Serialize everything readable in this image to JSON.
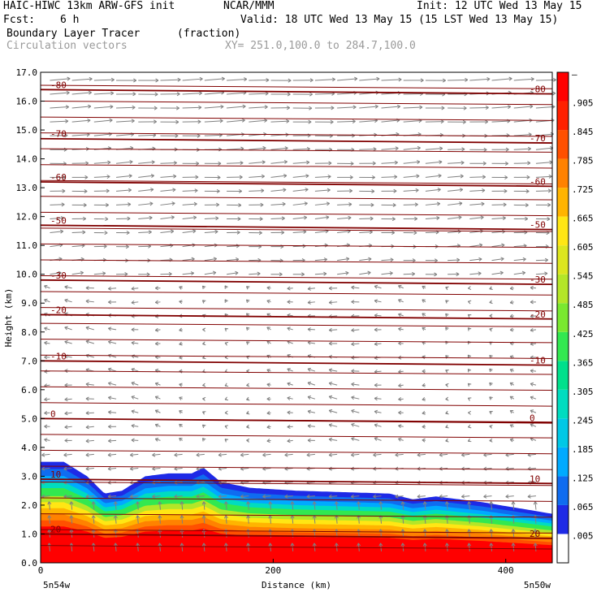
{
  "header": {
    "model": "HAIC-HIWC 13km ARW-GFS init",
    "org": "NCAR/MMM",
    "init": "Init: 12 UTC Wed 13 May 15",
    "fcst_label": "Fcst:",
    "fcst_value": "6 h",
    "valid": "Valid: 18 UTC Wed 13 May 15 (15 LST Wed 13 May 15)",
    "field": "Boundary Layer Tracer",
    "units": "(fraction)",
    "vectors": "Circulation vectors",
    "xy": "XY= 251.0,100.0 to 284.7,100.0"
  },
  "axes": {
    "ylabel": "Height (km)",
    "xlabel": "Distance (km)",
    "left_end": "5n54w",
    "right_end": "5n50w"
  },
  "colors": {
    "contour": "#800000",
    "vector": "#808080"
  },
  "chart_data": {
    "type": "heatmap",
    "xlim": [
      0,
      440
    ],
    "ylim": [
      0,
      17
    ],
    "xticks": [
      "0",
      "200",
      "400"
    ],
    "xtick_values": [
      0,
      200,
      400
    ],
    "yticks": [
      "0.0",
      "1.0",
      "2.0",
      "3.0",
      "4.0",
      "5.0",
      "6.0",
      "7.0",
      "8.0",
      "9.0",
      "10.0",
      "11.0",
      "12.0",
      "13.0",
      "14.0",
      "15.0",
      "16.0",
      "17.0"
    ],
    "ytick_values": [
      0,
      1,
      2,
      3,
      4,
      5,
      6,
      7,
      8,
      9,
      10,
      11,
      12,
      13,
      14,
      15,
      16,
      17
    ],
    "colorbar_labels": [
      ".005",
      ".065",
      ".125",
      ".185",
      ".245",
      ".305",
      ".365",
      ".425",
      ".485",
      ".545",
      ".605",
      ".665",
      ".725",
      ".785",
      ".845",
      ".905",
      "–"
    ],
    "colorbar_colors": [
      "#ffffff",
      "#1e2ae6",
      "#0f6cf0",
      "#00aaff",
      "#00c8e6",
      "#00dcc0",
      "#00e08c",
      "#32e850",
      "#7ae830",
      "#b4e628",
      "#dce61e",
      "#ffe614",
      "#ffb400",
      "#ff8200",
      "#ff5000",
      "#ff2000",
      "#ff0000"
    ],
    "tracer_top_profile": {
      "x": [
        0,
        20,
        40,
        55,
        70,
        90,
        110,
        130,
        140,
        155,
        180,
        220,
        260,
        300,
        320,
        340,
        380,
        410,
        440
      ],
      "height": [
        3.5,
        3.5,
        3.0,
        2.4,
        2.5,
        3.0,
        3.1,
        3.1,
        3.3,
        2.8,
        2.6,
        2.5,
        2.45,
        2.4,
        2.2,
        2.3,
        2.1,
        1.9,
        1.7
      ]
    },
    "temperature_contours": [
      {
        "label": "-80",
        "height": 16.4
      },
      {
        "label": "-70",
        "height": 14.7
      },
      {
        "label": "-60",
        "height": 13.2
      },
      {
        "label": "-50",
        "height": 11.7
      },
      {
        "label": "-30",
        "height": 9.8
      },
      {
        "label": "-20",
        "height": 8.6
      },
      {
        "label": "-10",
        "height": 7.0
      },
      {
        "label": "0",
        "height": 5.0
      },
      {
        "label": "10",
        "height": 2.9
      },
      {
        "label": "20",
        "height": 1.0
      }
    ]
  }
}
